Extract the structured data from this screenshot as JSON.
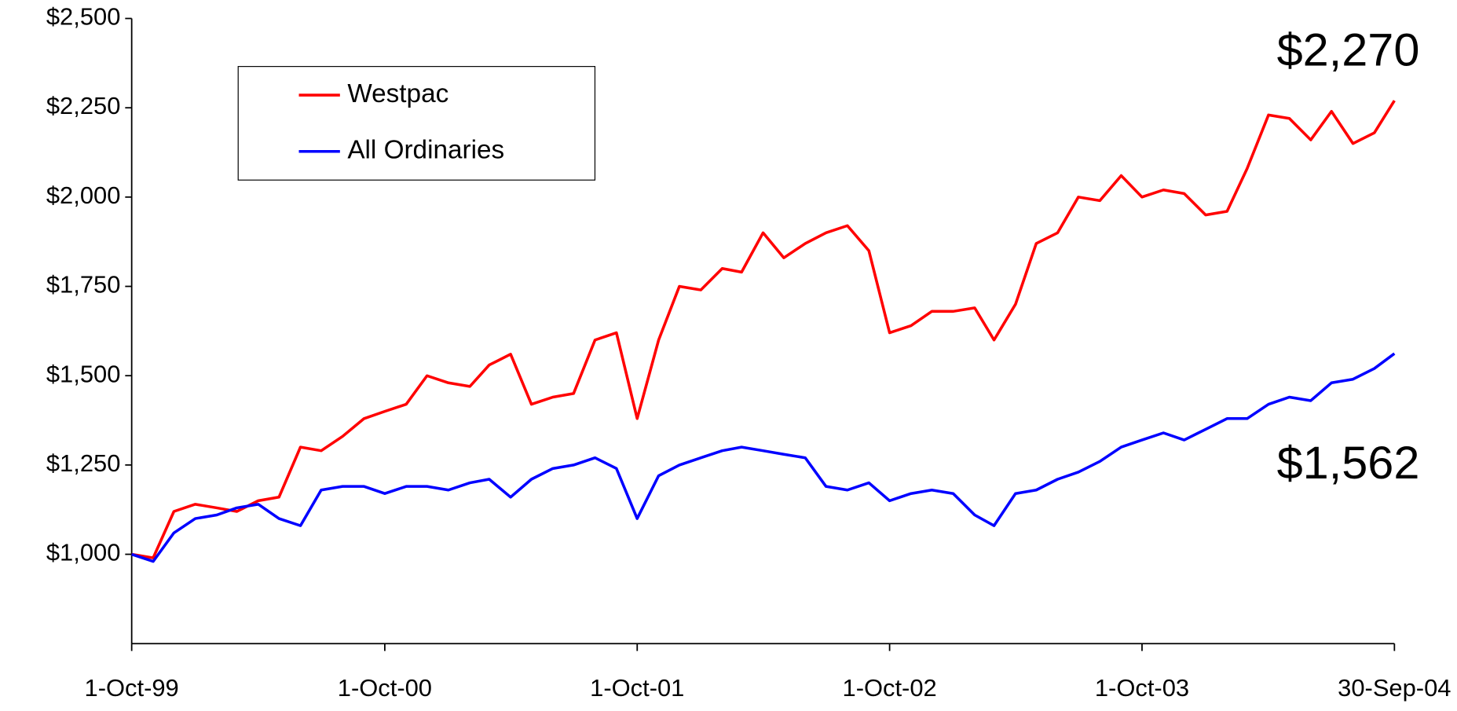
{
  "chart_data": {
    "type": "line",
    "x": [
      "1999-10-01",
      "1999-11-01",
      "1999-12-01",
      "2000-01-01",
      "2000-02-01",
      "2000-03-01",
      "2000-04-01",
      "2000-05-01",
      "2000-06-01",
      "2000-07-01",
      "2000-08-01",
      "2000-09-01",
      "2000-10-01",
      "2000-11-01",
      "2000-12-01",
      "2001-01-01",
      "2001-02-01",
      "2001-03-01",
      "2001-04-01",
      "2001-05-01",
      "2001-06-01",
      "2001-07-01",
      "2001-08-01",
      "2001-09-01",
      "2001-10-01",
      "2001-11-01",
      "2001-12-01",
      "2002-01-01",
      "2002-02-01",
      "2002-03-01",
      "2002-04-01",
      "2002-05-01",
      "2002-06-01",
      "2002-07-01",
      "2002-08-01",
      "2002-09-01",
      "2002-10-01",
      "2002-11-01",
      "2002-12-01",
      "2003-01-01",
      "2003-02-01",
      "2003-03-01",
      "2003-04-01",
      "2003-05-01",
      "2003-06-01",
      "2003-07-01",
      "2003-08-01",
      "2003-09-01",
      "2003-10-01",
      "2003-11-01",
      "2003-12-01",
      "2004-01-01",
      "2004-02-01",
      "2004-03-01",
      "2004-04-01",
      "2004-05-01",
      "2004-06-01",
      "2004-07-01",
      "2004-08-01",
      "2004-09-01",
      "2004-09-30"
    ],
    "series": [
      {
        "name": "Westpac",
        "color": "#ff0000",
        "values": [
          1000,
          990,
          1120,
          1140,
          1130,
          1120,
          1150,
          1160,
          1300,
          1290,
          1330,
          1380,
          1400,
          1420,
          1500,
          1480,
          1470,
          1530,
          1560,
          1420,
          1440,
          1450,
          1600,
          1620,
          1380,
          1600,
          1750,
          1740,
          1800,
          1790,
          1900,
          1830,
          1870,
          1900,
          1920,
          1850,
          1620,
          1640,
          1680,
          1680,
          1690,
          1600,
          1700,
          1870,
          1900,
          2000,
          1990,
          2060,
          2000,
          2020,
          2010,
          1950,
          1960,
          2080,
          2230,
          2220,
          2160,
          2240,
          2150,
          2180,
          2270
        ]
      },
      {
        "name": "All Ordinaries",
        "color": "#0000ff",
        "values": [
          1000,
          980,
          1060,
          1100,
          1110,
          1130,
          1140,
          1100,
          1080,
          1180,
          1190,
          1190,
          1170,
          1190,
          1190,
          1180,
          1200,
          1210,
          1160,
          1210,
          1240,
          1250,
          1270,
          1240,
          1100,
          1220,
          1250,
          1270,
          1290,
          1300,
          1290,
          1280,
          1270,
          1190,
          1180,
          1200,
          1150,
          1170,
          1180,
          1170,
          1110,
          1080,
          1170,
          1180,
          1210,
          1230,
          1260,
          1300,
          1320,
          1340,
          1320,
          1350,
          1380,
          1380,
          1420,
          1440,
          1430,
          1480,
          1490,
          1520,
          1562
        ]
      }
    ],
    "xlim": [
      "1999-10-01",
      "2004-09-30"
    ],
    "xticks": [
      {
        "value": "1999-10-01",
        "label": "1-Oct-99"
      },
      {
        "value": "2000-10-01",
        "label": "1-Oct-00"
      },
      {
        "value": "2001-10-01",
        "label": "1-Oct-01"
      },
      {
        "value": "2002-10-01",
        "label": "1-Oct-02"
      },
      {
        "value": "2003-10-01",
        "label": "1-Oct-03"
      },
      {
        "value": "2004-09-30",
        "label": "30-Sep-04"
      }
    ],
    "ylim": [
      750,
      2500
    ],
    "yticks": [
      {
        "value": 1000,
        "label": "$1,000"
      },
      {
        "value": 1250,
        "label": "$1,250"
      },
      {
        "value": 1500,
        "label": "$1,500"
      },
      {
        "value": 1750,
        "label": "$1,750"
      },
      {
        "value": 2000,
        "label": "$2,000"
      },
      {
        "value": 2250,
        "label": "$2,250"
      },
      {
        "value": 2500,
        "label": "$2,500"
      }
    ],
    "annotations": [
      "$2,270",
      "$1,562"
    ],
    "legend": "upper left",
    "grid": false
  }
}
